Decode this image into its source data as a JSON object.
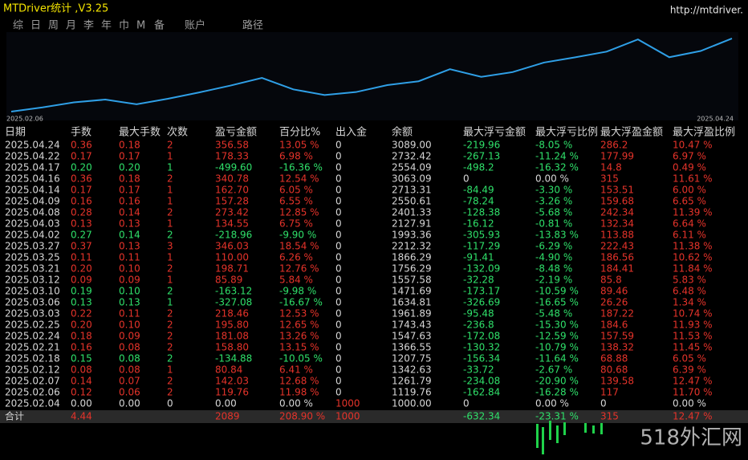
{
  "header": {
    "title": "MTDriver统计 ,V3.25",
    "url": "http://mtdriver."
  },
  "tabs": [
    "综",
    "日",
    "周",
    "月",
    "李",
    "年",
    "巾",
    "M",
    "备",
    "账户",
    "路径"
  ],
  "chart_data": {
    "type": "line",
    "categories": [
      "2025.02.06",
      null,
      null,
      null,
      null,
      null,
      null,
      null,
      null,
      null,
      null,
      null,
      null,
      null,
      null,
      null,
      null,
      null,
      null,
      null,
      null,
      null,
      null,
      "2025.04.24"
    ],
    "values": [
      1000,
      1119.76,
      1261.79,
      1342.63,
      1207.75,
      1366.55,
      1547.63,
      1743.43,
      1961.89,
      1634.81,
      1471.69,
      1557.58,
      1756.29,
      1866.29,
      2212.32,
      1993.36,
      2127.91,
      2401.33,
      2550.61,
      2713.31,
      3063.09,
      2554.09,
      2732.42,
      3089
    ],
    "color": "#2f9fe6",
    "ylim": [
      930,
      3180
    ]
  },
  "colors": {
    "up": "#e5332a",
    "down": "#2fe06a",
    "text": "#d6d6d6"
  },
  "table": {
    "columns": [
      "日期",
      "手数",
      "最大手数",
      "次数",
      "盈亏金额",
      "百分比%",
      "出入金",
      "余额",
      "最大浮亏金额",
      "最大浮亏比例",
      "最大浮盈金额",
      "最大浮盈比例"
    ],
    "rows": [
      [
        "2025.04.24",
        "0.36",
        "0.18",
        "2",
        "356.58",
        "13.05 %",
        "0",
        "3089.00",
        "-219.96",
        "-8.05 %",
        "286.2",
        "10.47 %"
      ],
      [
        "2025.04.22",
        "0.17",
        "0.17",
        "1",
        "178.33",
        "6.98 %",
        "0",
        "2732.42",
        "-267.13",
        "-11.24 %",
        "177.99",
        "6.97 %"
      ],
      [
        "2025.04.17",
        "0.20",
        "0.20",
        "1",
        "-499.60",
        "-16.36 %",
        "0",
        "2554.09",
        "-498.2",
        "-16.32 %",
        "14.8",
        "0.49 %"
      ],
      [
        "2025.04.16",
        "0.36",
        "0.18",
        "2",
        "340.78",
        "12.54 %",
        "0",
        "3063.09",
        "0",
        "0.00 %",
        "315",
        "11.61 %"
      ],
      [
        "2025.04.14",
        "0.17",
        "0.17",
        "1",
        "162.70",
        "6.05 %",
        "0",
        "2713.31",
        "-84.49",
        "-3.30 %",
        "153.51",
        "6.00 %"
      ],
      [
        "2025.04.09",
        "0.16",
        "0.16",
        "1",
        "157.28",
        "6.55 %",
        "0",
        "2550.61",
        "-78.24",
        "-3.26 %",
        "159.68",
        "6.65 %"
      ],
      [
        "2025.04.08",
        "0.28",
        "0.14",
        "2",
        "273.42",
        "12.85 %",
        "0",
        "2401.33",
        "-128.38",
        "-5.68 %",
        "242.34",
        "11.39 %"
      ],
      [
        "2025.04.03",
        "0.13",
        "0.13",
        "1",
        "134.55",
        "6.75 %",
        "0",
        "2127.91",
        "-16.12",
        "-0.81 %",
        "132.34",
        "6.64 %"
      ],
      [
        "2025.04.02",
        "0.27",
        "0.14",
        "2",
        "-218.96",
        "-9.90 %",
        "0",
        "1993.36",
        "-305.93",
        "-13.83 %",
        "113.88",
        "6.11 %"
      ],
      [
        "2025.03.27",
        "0.37",
        "0.13",
        "3",
        "346.03",
        "18.54 %",
        "0",
        "2212.32",
        "-117.29",
        "-6.29 %",
        "222.43",
        "11.38 %"
      ],
      [
        "2025.03.25",
        "0.11",
        "0.11",
        "1",
        "110.00",
        "6.26 %",
        "0",
        "1866.29",
        "-91.41",
        "-4.90 %",
        "186.56",
        "10.62 %"
      ],
      [
        "2025.03.21",
        "0.20",
        "0.10",
        "2",
        "198.71",
        "12.76 %",
        "0",
        "1756.29",
        "-132.09",
        "-8.48 %",
        "184.41",
        "11.84 %"
      ],
      [
        "2025.03.12",
        "0.09",
        "0.09",
        "1",
        "85.89",
        "5.84 %",
        "0",
        "1557.58",
        "-32.28",
        "-2.19 %",
        "85.8",
        "5.83 %"
      ],
      [
        "2025.03.10",
        "0.19",
        "0.10",
        "2",
        "-163.12",
        "-9.98 %",
        "0",
        "1471.69",
        "-173.17",
        "-10.59 %",
        "89.46",
        "6.48 %"
      ],
      [
        "2025.03.06",
        "0.13",
        "0.13",
        "1",
        "-327.08",
        "-16.67 %",
        "0",
        "1634.81",
        "-326.69",
        "-16.65 %",
        "26.26",
        "1.34 %"
      ],
      [
        "2025.03.03",
        "0.22",
        "0.11",
        "2",
        "218.46",
        "12.53 %",
        "0",
        "1961.89",
        "-95.48",
        "-5.48 %",
        "187.22",
        "10.74 %"
      ],
      [
        "2025.02.25",
        "0.20",
        "0.10",
        "2",
        "195.80",
        "12.65 %",
        "0",
        "1743.43",
        "-236.8",
        "-15.30 %",
        "184.6",
        "11.93 %"
      ],
      [
        "2025.02.24",
        "0.18",
        "0.09",
        "2",
        "181.08",
        "13.26 %",
        "0",
        "1547.63",
        "-172.08",
        "-12.59 %",
        "157.59",
        "11.53 %"
      ],
      [
        "2025.02.21",
        "0.16",
        "0.08",
        "2",
        "158.80",
        "13.15 %",
        "0",
        "1366.55",
        "-130.32",
        "-10.79 %",
        "138.32",
        "11.45 %"
      ],
      [
        "2025.02.18",
        "0.15",
        "0.08",
        "2",
        "-134.88",
        "-10.05 %",
        "0",
        "1207.75",
        "-156.34",
        "-11.64 %",
        "68.88",
        "6.05 %"
      ],
      [
        "2025.02.12",
        "0.08",
        "0.08",
        "1",
        "80.84",
        "6.41 %",
        "0",
        "1342.63",
        "-33.72",
        "-2.67 %",
        "80.68",
        "6.39 %"
      ],
      [
        "2025.02.07",
        "0.14",
        "0.07",
        "2",
        "142.03",
        "12.68 %",
        "0",
        "1261.79",
        "-234.08",
        "-20.90 %",
        "139.58",
        "12.47 %"
      ],
      [
        "2025.02.06",
        "0.12",
        "0.06",
        "2",
        "119.76",
        "11.98 %",
        "0",
        "1119.76",
        "-162.84",
        "-16.28 %",
        "117",
        "11.70 %"
      ],
      [
        "2025.02.04",
        "0.00",
        "0.00",
        "0",
        "0.00",
        "0.00 %",
        "1000",
        "1000.00",
        "0",
        "0.00 %",
        "0",
        "0.00 %"
      ]
    ],
    "total": [
      "合计",
      "4.44",
      "",
      "",
      "2089",
      "208.90 %",
      "1000",
      "",
      "-632.34",
      "-23.31 %",
      "315",
      "12.47 %"
    ]
  },
  "watermark": "518外汇网"
}
